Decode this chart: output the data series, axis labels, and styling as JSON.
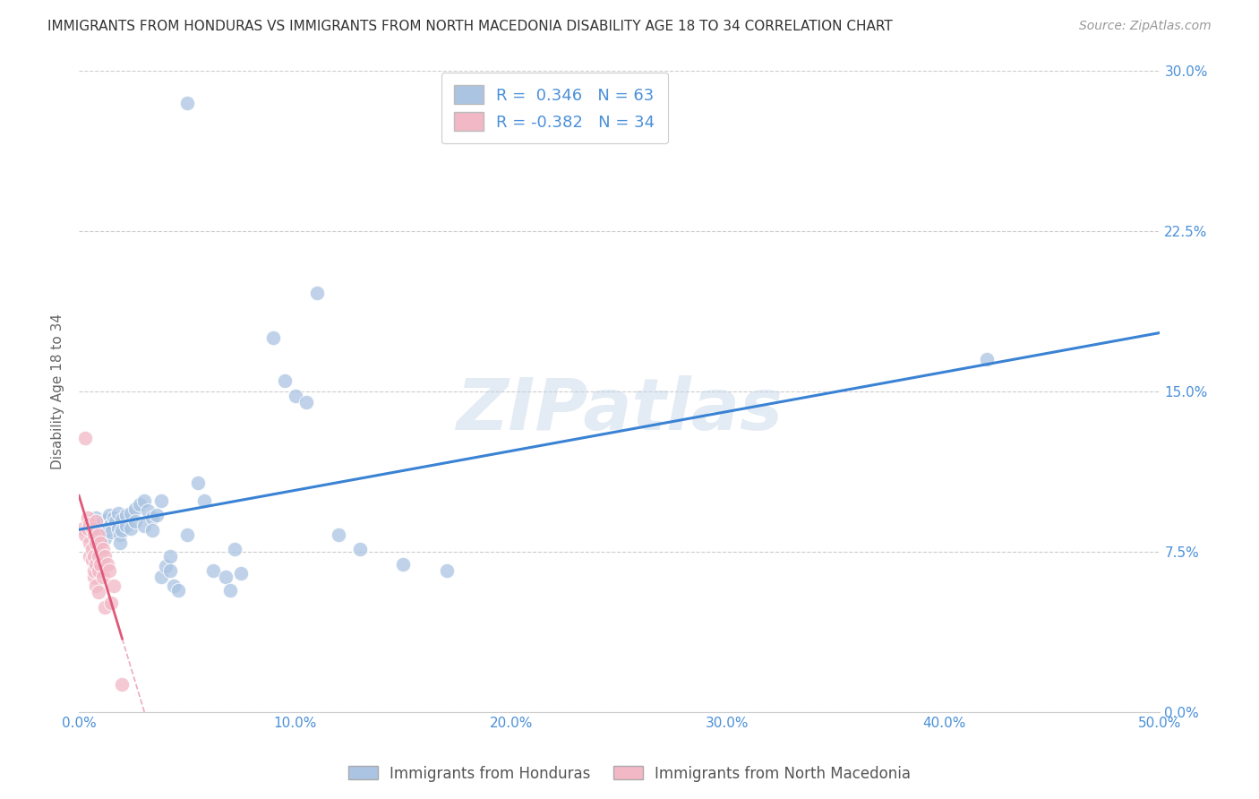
{
  "title": "IMMIGRANTS FROM HONDURAS VS IMMIGRANTS FROM NORTH MACEDONIA DISABILITY AGE 18 TO 34 CORRELATION CHART",
  "source": "Source: ZipAtlas.com",
  "ylabel": "Disability Age 18 to 34",
  "xlim": [
    0.0,
    0.5
  ],
  "ylim": [
    0.0,
    0.3
  ],
  "xticks": [
    0.0,
    0.1,
    0.2,
    0.3,
    0.4,
    0.5
  ],
  "xticklabels": [
    "0.0%",
    "10.0%",
    "20.0%",
    "30.0%",
    "40.0%",
    "50.0%"
  ],
  "yticks": [
    0.0,
    0.075,
    0.15,
    0.225,
    0.3
  ],
  "yticklabels": [
    "0.0%",
    "7.5%",
    "15.0%",
    "22.5%",
    "30.0%"
  ],
  "honduras_color": "#aac4e2",
  "north_macedonia_color": "#f2b8c6",
  "honduras_line_color": "#3a82d4",
  "north_macedonia_line_color": "#e05878",
  "R_honduras": 0.346,
  "N_honduras": 63,
  "R_north_macedonia": -0.382,
  "N_north_macedonia": 34,
  "legend_label_honduras": "Immigrants from Honduras",
  "legend_label_north_macedonia": "Immigrants from North Macedonia",
  "watermark": "ZIPatlas",
  "background_color": "#ffffff",
  "grid_color": "#cccccc",
  "honduras_scatter": [
    [
      0.005,
      0.088
    ],
    [
      0.007,
      0.086
    ],
    [
      0.008,
      0.091
    ],
    [
      0.009,
      0.083
    ],
    [
      0.01,
      0.087
    ],
    [
      0.01,
      0.082
    ],
    [
      0.011,
      0.089
    ],
    [
      0.011,
      0.084
    ],
    [
      0.012,
      0.086
    ],
    [
      0.012,
      0.081
    ],
    [
      0.013,
      0.09
    ],
    [
      0.013,
      0.085
    ],
    [
      0.014,
      0.092
    ],
    [
      0.014,
      0.087
    ],
    [
      0.015,
      0.088
    ],
    [
      0.015,
      0.084
    ],
    [
      0.016,
      0.091
    ],
    [
      0.017,
      0.089
    ],
    [
      0.018,
      0.093
    ],
    [
      0.018,
      0.086
    ],
    [
      0.019,
      0.083
    ],
    [
      0.019,
      0.079
    ],
    [
      0.02,
      0.09
    ],
    [
      0.02,
      0.085
    ],
    [
      0.022,
      0.092
    ],
    [
      0.022,
      0.087
    ],
    [
      0.024,
      0.093
    ],
    [
      0.024,
      0.086
    ],
    [
      0.026,
      0.095
    ],
    [
      0.026,
      0.089
    ],
    [
      0.028,
      0.097
    ],
    [
      0.03,
      0.099
    ],
    [
      0.03,
      0.087
    ],
    [
      0.032,
      0.094
    ],
    [
      0.034,
      0.091
    ],
    [
      0.034,
      0.085
    ],
    [
      0.036,
      0.092
    ],
    [
      0.038,
      0.099
    ],
    [
      0.038,
      0.063
    ],
    [
      0.04,
      0.068
    ],
    [
      0.042,
      0.073
    ],
    [
      0.042,
      0.066
    ],
    [
      0.044,
      0.059
    ],
    [
      0.046,
      0.057
    ],
    [
      0.05,
      0.083
    ],
    [
      0.055,
      0.107
    ],
    [
      0.058,
      0.099
    ],
    [
      0.062,
      0.066
    ],
    [
      0.068,
      0.063
    ],
    [
      0.07,
      0.057
    ],
    [
      0.072,
      0.076
    ],
    [
      0.075,
      0.065
    ],
    [
      0.09,
      0.175
    ],
    [
      0.095,
      0.155
    ],
    [
      0.1,
      0.148
    ],
    [
      0.105,
      0.145
    ],
    [
      0.11,
      0.196
    ],
    [
      0.12,
      0.083
    ],
    [
      0.13,
      0.076
    ],
    [
      0.15,
      0.069
    ],
    [
      0.17,
      0.066
    ],
    [
      0.42,
      0.165
    ],
    [
      0.05,
      0.285
    ]
  ],
  "north_macedonia_scatter": [
    [
      0.002,
      0.086
    ],
    [
      0.003,
      0.083
    ],
    [
      0.004,
      0.091
    ],
    [
      0.004,
      0.086
    ],
    [
      0.005,
      0.079
    ],
    [
      0.005,
      0.073
    ],
    [
      0.005,
      0.088
    ],
    [
      0.006,
      0.076
    ],
    [
      0.006,
      0.086
    ],
    [
      0.006,
      0.071
    ],
    [
      0.007,
      0.063
    ],
    [
      0.007,
      0.083
    ],
    [
      0.007,
      0.073
    ],
    [
      0.007,
      0.066
    ],
    [
      0.008,
      0.089
    ],
    [
      0.008,
      0.079
    ],
    [
      0.008,
      0.069
    ],
    [
      0.008,
      0.059
    ],
    [
      0.009,
      0.083
    ],
    [
      0.009,
      0.073
    ],
    [
      0.009,
      0.066
    ],
    [
      0.009,
      0.056
    ],
    [
      0.01,
      0.079
    ],
    [
      0.01,
      0.069
    ],
    [
      0.011,
      0.076
    ],
    [
      0.011,
      0.063
    ],
    [
      0.012,
      0.049
    ],
    [
      0.012,
      0.073
    ],
    [
      0.013,
      0.069
    ],
    [
      0.014,
      0.066
    ],
    [
      0.015,
      0.051
    ],
    [
      0.016,
      0.059
    ],
    [
      0.003,
      0.128
    ],
    [
      0.02,
      0.013
    ]
  ]
}
